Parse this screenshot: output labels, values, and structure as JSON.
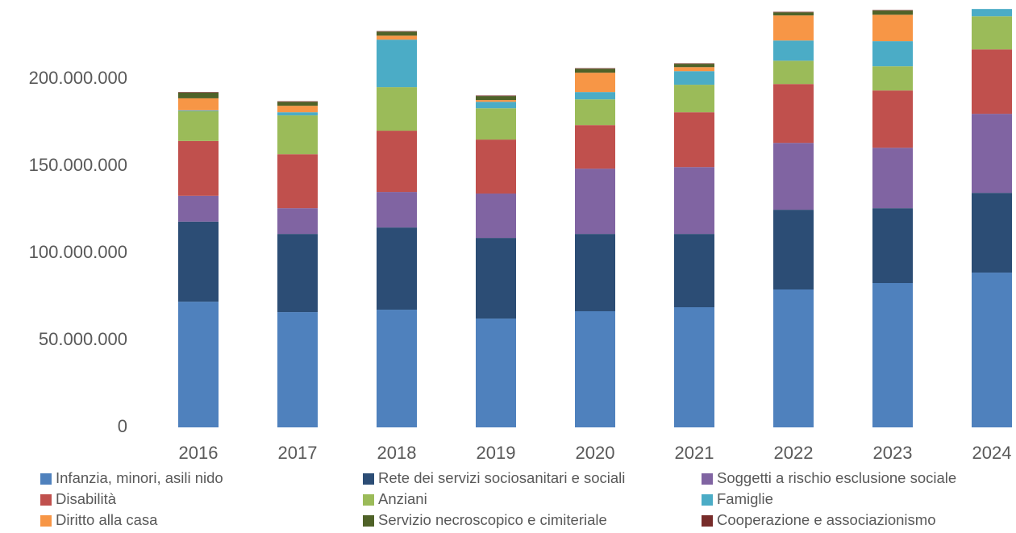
{
  "chart_data": {
    "type": "stacked_bar",
    "categories": [
      "2016",
      "2017",
      "2018",
      "2019",
      "2020",
      "2021",
      "2022",
      "2023",
      "2024"
    ],
    "series": [
      {
        "name": "Infanzia, minori, asili nido",
        "color": "#4f81bd",
        "values": [
          72200000,
          66200000,
          67600000,
          62500000,
          66700000,
          69000000,
          79200000,
          82900000,
          88900000
        ]
      },
      {
        "name": "Rete dei servizi sociosanitari e sociali",
        "color": "#2c4d75",
        "values": [
          46000000,
          44900000,
          47200000,
          46300000,
          44400000,
          42100000,
          45800000,
          43000000,
          45800000
        ]
      },
      {
        "name": "Soggetti a rischio esclusione sociale",
        "color": "#8064a2",
        "values": [
          14800000,
          14800000,
          20400000,
          25500000,
          37500000,
          38400000,
          38400000,
          34700000,
          45400000
        ]
      },
      {
        "name": "Disabilità",
        "color": "#c0504d",
        "values": [
          31500000,
          31000000,
          35200000,
          31000000,
          25000000,
          31500000,
          33800000,
          32900000,
          37000000
        ]
      },
      {
        "name": "Anziani",
        "color": "#9bbb59",
        "values": [
          17100000,
          22300000,
          25000000,
          18000000,
          14800000,
          15800000,
          13400000,
          13900000,
          19000000
        ]
      },
      {
        "name": "Famiglie",
        "color": "#4bacc6",
        "values": [
          500000,
          1800000,
          27300000,
          3700000,
          4200000,
          7800000,
          11600000,
          14400000,
          4200000
        ]
      },
      {
        "name": "Diritto alla casa",
        "color": "#f79646",
        "values": [
          6900000,
          3700000,
          2300000,
          1000000,
          11100000,
          2300000,
          14400000,
          15200000,
          0
        ]
      },
      {
        "name": "Servizio necroscopico e cimiteriale",
        "color": "#4f6228",
        "values": [
          3300000,
          2300000,
          2300000,
          2300000,
          2300000,
          1900000,
          1800000,
          2400000,
          0
        ]
      },
      {
        "name": "Cooperazione e associazionismo",
        "color": "#772c2a",
        "values": [
          300000,
          300000,
          300000,
          300000,
          300000,
          300000,
          300000,
          300000,
          0
        ]
      }
    ],
    "ylim": [
      0,
      245000000
    ],
    "yticks": [
      0,
      {
        "value": 50000000,
        "label": "50.000.000"
      },
      {
        "value": 100000000,
        "label": "100.000.000"
      },
      {
        "value": 150000000,
        "label": "150.000.000"
      },
      {
        "value": 200000000,
        "label": "200.000.000"
      }
    ],
    "grid": false
  }
}
